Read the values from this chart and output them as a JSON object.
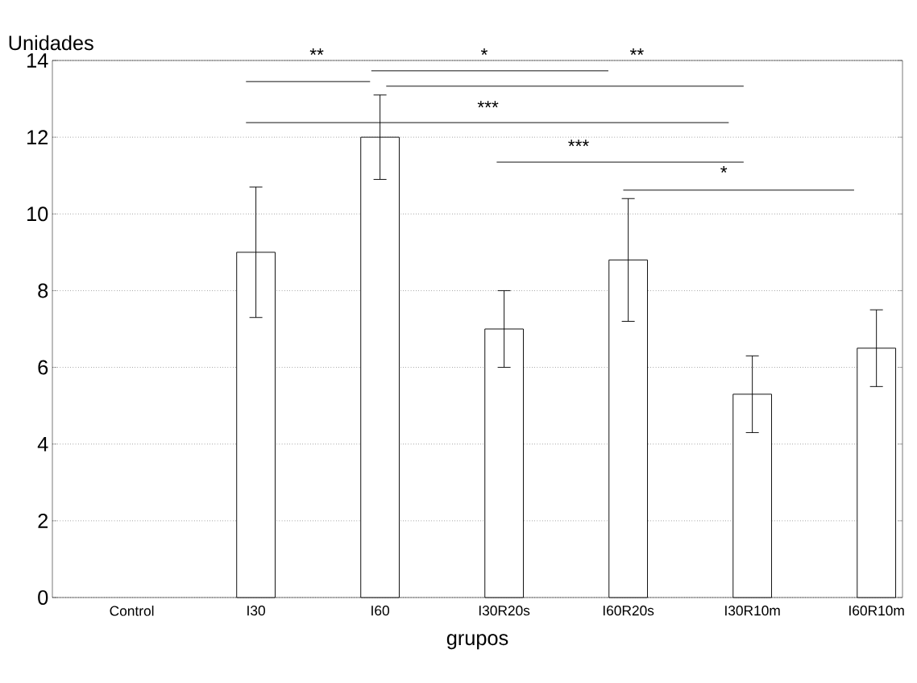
{
  "chart_data": {
    "type": "bar",
    "ylabel": "Unidades",
    "xlabel": "grupos",
    "categories": [
      "Control",
      "I30",
      "I60",
      "I30R20s",
      "I60R20s",
      "I30R10m",
      "I60R10m"
    ],
    "values": [
      null,
      9.0,
      12.0,
      7.0,
      8.8,
      5.3,
      6.5
    ],
    "errors": [
      null,
      1.7,
      1.1,
      1.0,
      1.6,
      1.0,
      1.0
    ],
    "color": "#ffffff",
    "ylim": [
      0,
      14
    ],
    "yticks": [
      0,
      2,
      4,
      6,
      8,
      10,
      12,
      14
    ],
    "grid": "y",
    "annotations": [
      "**",
      "*",
      "**",
      "***",
      "***",
      "*"
    ]
  }
}
